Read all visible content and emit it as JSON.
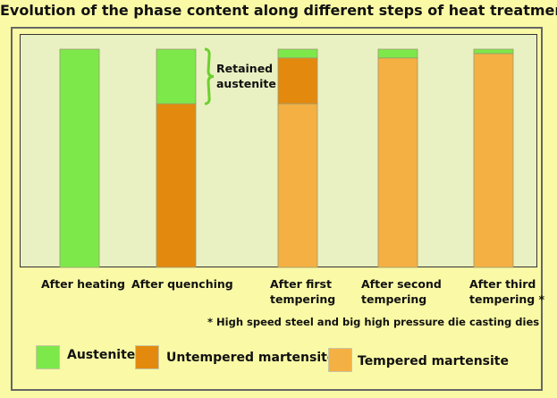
{
  "chart_data": {
    "type": "stacked-bar",
    "title": "Evolution of the phase content along different steps of heat treatment",
    "categories": [
      "After heating",
      "After quenching",
      "After first\ntempering",
      "After second\ntempering",
      "After third\ntempering *"
    ],
    "series": [
      {
        "name": "Tempered martensite",
        "color": "#f4b042",
        "values": [
          0,
          0,
          75,
          96,
          98
        ]
      },
      {
        "name": "Untempered martensite",
        "color": "#e38a0e",
        "values": [
          0,
          75,
          21,
          0,
          0
        ]
      },
      {
        "name": "Austenite",
        "color": "#7de84a",
        "values": [
          100,
          25,
          4,
          4,
          2
        ]
      }
    ],
    "ylim": [
      0,
      100
    ],
    "annotation": "Retained\naustenite",
    "footnote": "* High speed steel and big high pressure die casting dies"
  }
}
